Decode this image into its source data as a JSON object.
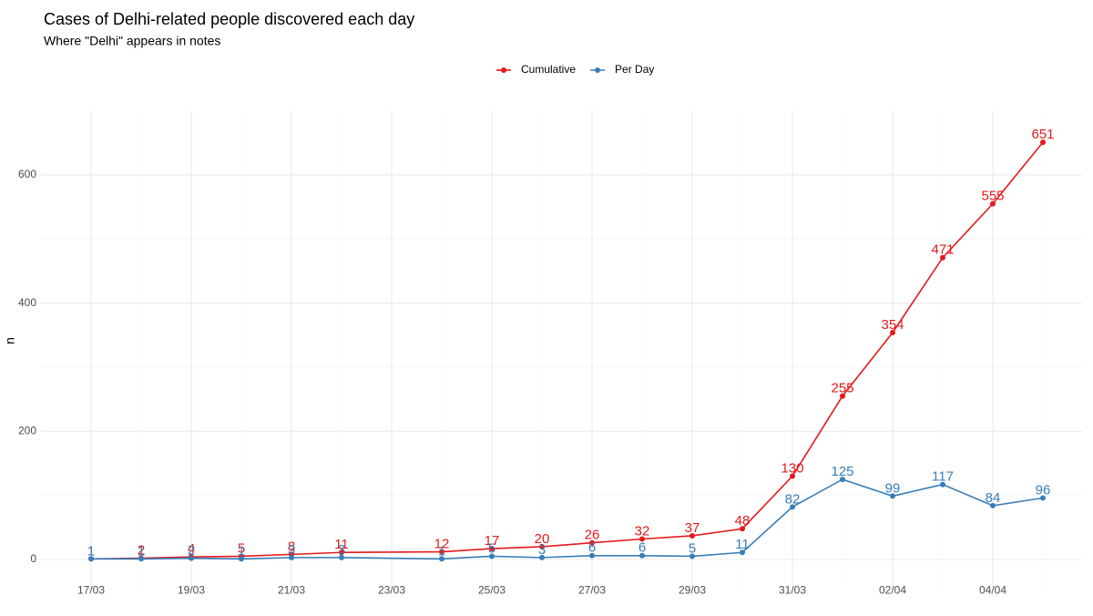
{
  "chart_data": {
    "type": "line",
    "title": "Cases of Delhi-related people discovered each day",
    "subtitle": "Where \"Delhi\" appears in notes",
    "y_label": "n",
    "x": [
      "17/03",
      "18/03",
      "19/03",
      "20/03",
      "21/03",
      "22/03",
      "24/03",
      "25/03",
      "26/03",
      "27/03",
      "28/03",
      "29/03",
      "30/03",
      "31/03",
      "01/04",
      "02/04",
      "03/04",
      "04/04",
      "05/04"
    ],
    "series": [
      {
        "name": "Cumulative",
        "color": "#e41a1c",
        "values": [
          1,
          2,
          4,
          5,
          8,
          11,
          12,
          17,
          20,
          26,
          32,
          37,
          48,
          130,
          255,
          354,
          471,
          555,
          651
        ]
      },
      {
        "name": "Per Day",
        "color": "#377eb8",
        "values": [
          1,
          1,
          2,
          1,
          3,
          3,
          1,
          5,
          3,
          6,
          6,
          5,
          11,
          82,
          125,
          99,
          117,
          84,
          96
        ]
      }
    ],
    "xlim": [
      "16/03",
      "06/04"
    ],
    "xticks": [
      "17/03",
      "19/03",
      "21/03",
      "23/03",
      "25/03",
      "27/03",
      "29/03",
      "31/03",
      "02/04",
      "04/04"
    ],
    "ylim": [
      -32,
      683
    ],
    "yticks": [
      0,
      200,
      400,
      600
    ],
    "grid": true,
    "legend": "top"
  }
}
